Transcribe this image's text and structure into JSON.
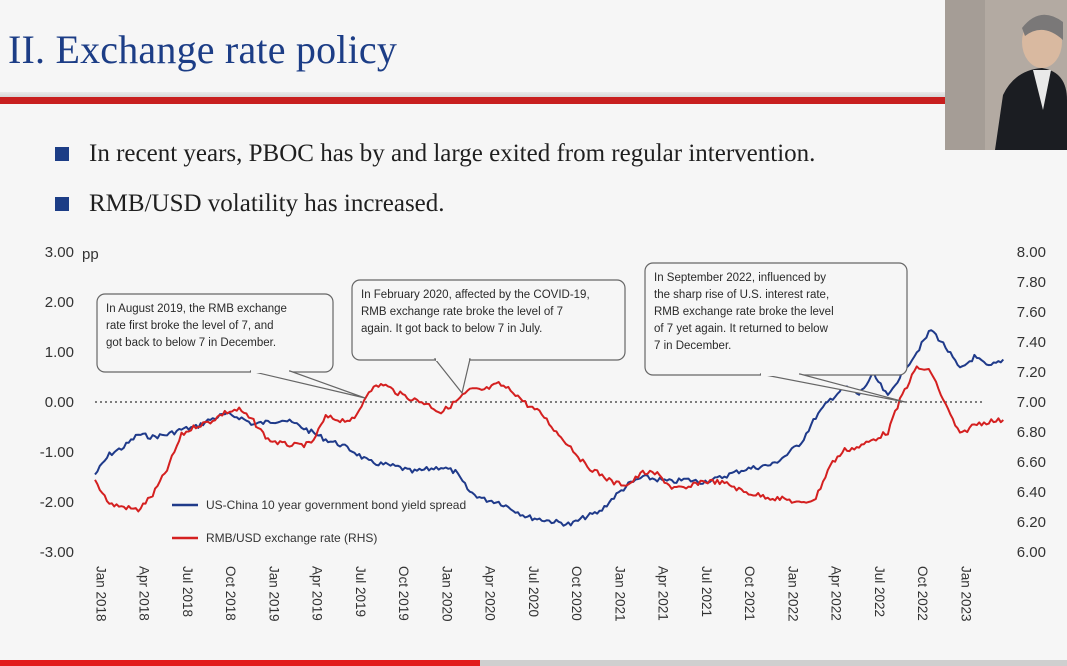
{
  "slide": {
    "title": "II. Exchange rate policy",
    "bullets": [
      "In recent years, PBOC has by and large exited from regular intervention.",
      "RMB/USD volatility has increased."
    ],
    "colors": {
      "title": "#1c3d86",
      "rule": "#c81f1f",
      "bullet_marker": "#1c3d86"
    }
  },
  "chart_data": {
    "type": "line",
    "left_unit": "pp",
    "left_axis": {
      "min": -3.0,
      "max": 3.0,
      "ticks": [
        "3.00",
        "2.00",
        "1.00",
        "0.00",
        "-1.00",
        "-2.00",
        "-3.00"
      ]
    },
    "right_axis": {
      "min": 6.0,
      "max": 8.0,
      "ticks": [
        "8.00",
        "7.80",
        "7.60",
        "7.40",
        "7.20",
        "7.00",
        "6.80",
        "6.60",
        "6.40",
        "6.20",
        "6.00"
      ]
    },
    "x_ticks": [
      "Jan 2018",
      "Apr 2018",
      "Jul 2018",
      "Oct 2018",
      "Jan 2019",
      "Apr 2019",
      "Jul 2019",
      "Oct 2019",
      "Jan 2020",
      "Apr 2020",
      "Jul 2020",
      "Oct 2020",
      "Jan 2021",
      "Apr 2021",
      "Jul 2021",
      "Oct 2021",
      "Jan 2022",
      "Apr 2022",
      "Jul 2022",
      "Oct 2022",
      "Jan 2023"
    ],
    "zero_line": {
      "value": 0.0,
      "style": "dotted"
    },
    "series": [
      {
        "name": "US-China 10 year government bond yield spread",
        "axis": "left",
        "color": "#1f3a8a",
        "points": [
          [
            "2018-01",
            -1.45
          ],
          [
            "2018-02",
            -1.05
          ],
          [
            "2018-03",
            -0.9
          ],
          [
            "2018-04",
            -0.65
          ],
          [
            "2018-05",
            -0.7
          ],
          [
            "2018-06",
            -0.65
          ],
          [
            "2018-07",
            -0.55
          ],
          [
            "2018-08",
            -0.5
          ],
          [
            "2018-09",
            -0.35
          ],
          [
            "2018-10",
            -0.25
          ],
          [
            "2018-11",
            -0.3
          ],
          [
            "2018-12",
            -0.45
          ],
          [
            "2019-01",
            -0.4
          ],
          [
            "2019-02",
            -0.35
          ],
          [
            "2019-03",
            -0.45
          ],
          [
            "2019-04",
            -0.6
          ],
          [
            "2019-05",
            -0.75
          ],
          [
            "2019-06",
            -0.85
          ],
          [
            "2019-07",
            -1.0
          ],
          [
            "2019-08",
            -1.2
          ],
          [
            "2019-09",
            -1.25
          ],
          [
            "2019-10",
            -1.3
          ],
          [
            "2019-11",
            -1.4
          ],
          [
            "2019-12",
            -1.35
          ],
          [
            "2020-01",
            -1.3
          ],
          [
            "2020-02",
            -1.4
          ],
          [
            "2020-03",
            -1.8
          ],
          [
            "2020-04",
            -1.95
          ],
          [
            "2020-05",
            -2.0
          ],
          [
            "2020-06",
            -2.15
          ],
          [
            "2020-07",
            -2.3
          ],
          [
            "2020-08",
            -2.35
          ],
          [
            "2020-09",
            -2.4
          ],
          [
            "2020-10",
            -2.45
          ],
          [
            "2020-11",
            -2.3
          ],
          [
            "2020-12",
            -2.2
          ],
          [
            "2021-01",
            -1.9
          ],
          [
            "2021-02",
            -1.65
          ],
          [
            "2021-03",
            -1.5
          ],
          [
            "2021-04",
            -1.55
          ],
          [
            "2021-05",
            -1.6
          ],
          [
            "2021-06",
            -1.55
          ],
          [
            "2021-07",
            -1.6
          ],
          [
            "2021-08",
            -1.55
          ],
          [
            "2021-09",
            -1.45
          ],
          [
            "2021-10",
            -1.35
          ],
          [
            "2021-11",
            -1.3
          ],
          [
            "2021-12",
            -1.25
          ],
          [
            "2022-01",
            -1.05
          ],
          [
            "2022-02",
            -0.8
          ],
          [
            "2022-03",
            -0.3
          ],
          [
            "2022-04",
            0.05
          ],
          [
            "2022-05",
            0.3
          ],
          [
            "2022-06",
            0.15
          ],
          [
            "2022-07",
            0.55
          ],
          [
            "2022-08",
            0.1
          ],
          [
            "2022-09",
            0.6
          ],
          [
            "2022-10",
            1.0
          ],
          [
            "2022-11",
            1.45
          ],
          [
            "2022-12",
            1.1
          ],
          [
            "2023-01",
            0.65
          ],
          [
            "2023-02",
            0.9
          ],
          [
            "2023-03",
            0.7
          ],
          [
            "2023-04",
            0.85
          ]
        ]
      },
      {
        "name": "RMB/USD exchange rate (RHS)",
        "axis": "right",
        "color": "#d42020",
        "points": [
          [
            "2018-01",
            6.48
          ],
          [
            "2018-02",
            6.32
          ],
          [
            "2018-03",
            6.3
          ],
          [
            "2018-04",
            6.28
          ],
          [
            "2018-05",
            6.38
          ],
          [
            "2018-06",
            6.55
          ],
          [
            "2018-07",
            6.78
          ],
          [
            "2018-08",
            6.84
          ],
          [
            "2018-09",
            6.87
          ],
          [
            "2018-10",
            6.93
          ],
          [
            "2018-11",
            6.95
          ],
          [
            "2018-12",
            6.87
          ],
          [
            "2019-01",
            6.75
          ],
          [
            "2019-02",
            6.72
          ],
          [
            "2019-03",
            6.71
          ],
          [
            "2019-04",
            6.72
          ],
          [
            "2019-05",
            6.9
          ],
          [
            "2019-06",
            6.88
          ],
          [
            "2019-07",
            6.88
          ],
          [
            "2019-08",
            7.08
          ],
          [
            "2019-09",
            7.12
          ],
          [
            "2019-10",
            7.06
          ],
          [
            "2019-11",
            7.02
          ],
          [
            "2019-12",
            6.99
          ],
          [
            "2020-01",
            6.93
          ],
          [
            "2020-02",
            7.0
          ],
          [
            "2020-03",
            7.08
          ],
          [
            "2020-04",
            7.08
          ],
          [
            "2020-05",
            7.12
          ],
          [
            "2020-06",
            7.07
          ],
          [
            "2020-07",
            6.98
          ],
          [
            "2020-08",
            6.92
          ],
          [
            "2020-09",
            6.8
          ],
          [
            "2020-10",
            6.7
          ],
          [
            "2020-11",
            6.58
          ],
          [
            "2020-12",
            6.52
          ],
          [
            "2021-01",
            6.46
          ],
          [
            "2021-02",
            6.45
          ],
          [
            "2021-03",
            6.53
          ],
          [
            "2021-04",
            6.52
          ],
          [
            "2021-05",
            6.43
          ],
          [
            "2021-06",
            6.42
          ],
          [
            "2021-07",
            6.47
          ],
          [
            "2021-08",
            6.47
          ],
          [
            "2021-09",
            6.45
          ],
          [
            "2021-10",
            6.4
          ],
          [
            "2021-11",
            6.38
          ],
          [
            "2021-12",
            6.36
          ],
          [
            "2022-01",
            6.35
          ],
          [
            "2022-02",
            6.32
          ],
          [
            "2022-03",
            6.36
          ],
          [
            "2022-04",
            6.58
          ],
          [
            "2022-05",
            6.68
          ],
          [
            "2022-06",
            6.7
          ],
          [
            "2022-07",
            6.75
          ],
          [
            "2022-08",
            6.8
          ],
          [
            "2022-09",
            7.05
          ],
          [
            "2022-10",
            7.23
          ],
          [
            "2022-11",
            7.2
          ],
          [
            "2022-12",
            6.98
          ],
          [
            "2023-01",
            6.78
          ],
          [
            "2023-02",
            6.85
          ],
          [
            "2023-03",
            6.87
          ],
          [
            "2023-04",
            6.88
          ]
        ]
      }
    ],
    "legend": {
      "placement": "bottom-left"
    },
    "annotations": [
      {
        "id": "aug2019",
        "lines": [
          "In August 2019, the RMB exchange",
          "rate first broke the level of 7, and",
          "got back to below 7 in December."
        ]
      },
      {
        "id": "feb2020",
        "lines": [
          "In February 2020, affected by the COVID-19,",
          "RMB exchange rate broke the level of 7",
          "again. It got back to below 7 in July."
        ]
      },
      {
        "id": "sep2022",
        "lines": [
          "In September 2022, influenced by",
          "the sharp rise of U.S. interest rate,",
          "RMB exchange rate broke the level",
          "of 7 yet again. It returned to below",
          "7 in December."
        ]
      }
    ]
  }
}
